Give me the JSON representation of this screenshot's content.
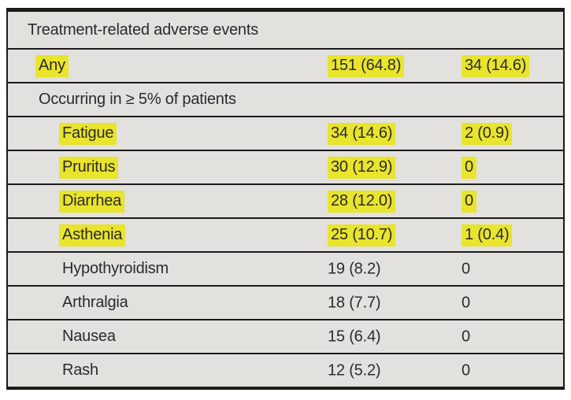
{
  "table": {
    "title": "Treatment-related adverse events",
    "background_color": "#e2e1de",
    "rule_color": "#1b1b1b",
    "highlight_color": "#e9e42c",
    "rows": [
      {
        "label": "Treatment-related adverse events",
        "col1": "",
        "col2": "",
        "indent": 0,
        "highlighted": false
      },
      {
        "label": "Any",
        "col1": "151 (64.8)",
        "col2": "34 (14.6)",
        "indent": 1,
        "highlighted": true
      },
      {
        "label": "Occurring in ≥ 5% of patients",
        "col1": "",
        "col2": "",
        "indent": 1,
        "highlighted": false
      },
      {
        "label": "Fatigue",
        "col1": "34 (14.6)",
        "col2": "2 (0.9)",
        "indent": 2,
        "highlighted": true
      },
      {
        "label": "Pruritus",
        "col1": "30 (12.9)",
        "col2": "0",
        "indent": 2,
        "highlighted": true
      },
      {
        "label": "Diarrhea",
        "col1": "28 (12.0)",
        "col2": "0",
        "indent": 2,
        "highlighted": true
      },
      {
        "label": "Asthenia",
        "col1": "25 (10.7)",
        "col2": "1 (0.4)",
        "indent": 2,
        "highlighted": true
      },
      {
        "label": "Hypothyroidism",
        "col1": "19 (8.2)",
        "col2": "0",
        "indent": 2,
        "highlighted": false
      },
      {
        "label": "Arthralgia",
        "col1": "18 (7.7)",
        "col2": "0",
        "indent": 2,
        "highlighted": false
      },
      {
        "label": "Nausea",
        "col1": "15 (6.4)",
        "col2": "0",
        "indent": 2,
        "highlighted": false
      },
      {
        "label": "Rash",
        "col1": "12 (5.2)",
        "col2": "0",
        "indent": 2,
        "highlighted": false
      }
    ]
  }
}
